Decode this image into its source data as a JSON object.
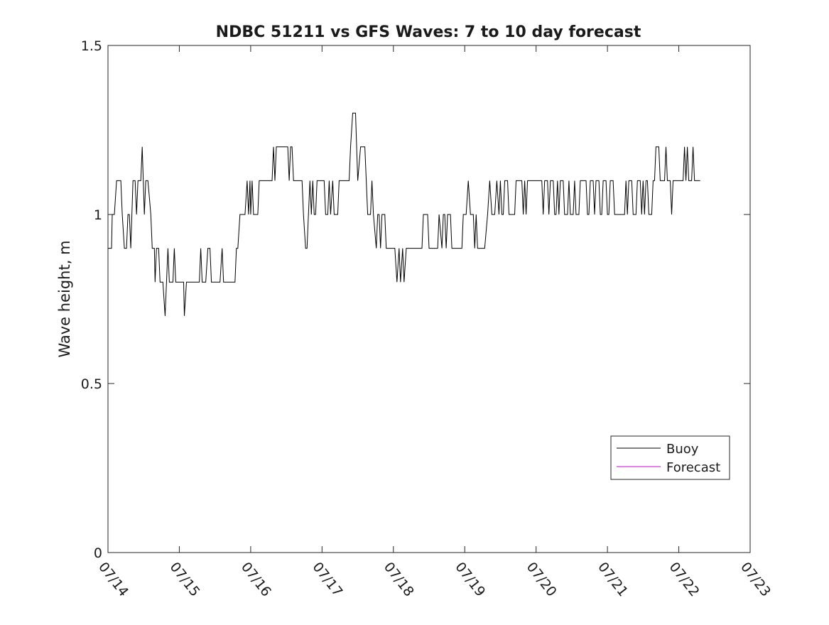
{
  "chart_data": {
    "type": "line",
    "title": "NDBC 51211 vs GFS Waves: 7 to 10 day forecast",
    "xlabel": "",
    "ylabel": "Wave height, m",
    "ylim": [
      0,
      1.5
    ],
    "yticks": [
      "0",
      "0.5",
      "1",
      "1.5"
    ],
    "yticks_values": [
      0,
      0.5,
      1,
      1.5
    ],
    "xlim_days": [
      0,
      9
    ],
    "xticks": [
      "07/14",
      "07/15",
      "07/16",
      "07/17",
      "07/18",
      "07/19",
      "07/20",
      "07/21",
      "07/22",
      "07/23"
    ],
    "grid": false,
    "legend_position": "lower-right",
    "series": [
      {
        "name": "Buoy",
        "color": "#000000",
        "points": [
          [
            0.0,
            0.9
          ],
          [
            0.02,
            0.9
          ],
          [
            0.05,
            0.9
          ],
          [
            0.06,
            1.0
          ],
          [
            0.09,
            1.0
          ],
          [
            0.12,
            1.1
          ],
          [
            0.18,
            1.1
          ],
          [
            0.2,
            1.0
          ],
          [
            0.23,
            0.9
          ],
          [
            0.26,
            0.9
          ],
          [
            0.28,
            1.0
          ],
          [
            0.3,
            1.0
          ],
          [
            0.32,
            0.9
          ],
          [
            0.35,
            1.1
          ],
          [
            0.38,
            1.1
          ],
          [
            0.4,
            1.0
          ],
          [
            0.42,
            1.1
          ],
          [
            0.46,
            1.1
          ],
          [
            0.48,
            1.2
          ],
          [
            0.51,
            1.0
          ],
          [
            0.53,
            1.1
          ],
          [
            0.56,
            1.1
          ],
          [
            0.58,
            1.05
          ],
          [
            0.6,
            1.0
          ],
          [
            0.62,
            0.9
          ],
          [
            0.65,
            0.9
          ],
          [
            0.66,
            0.8
          ],
          [
            0.68,
            0.9
          ],
          [
            0.71,
            0.9
          ],
          [
            0.73,
            0.8
          ],
          [
            0.77,
            0.8
          ],
          [
            0.8,
            0.7
          ],
          [
            0.82,
            0.8
          ],
          [
            0.84,
            0.9
          ],
          [
            0.86,
            0.8
          ],
          [
            0.91,
            0.8
          ],
          [
            0.93,
            0.9
          ],
          [
            0.95,
            0.8
          ],
          [
            1.06,
            0.8
          ],
          [
            1.07,
            0.7
          ],
          [
            1.1,
            0.8
          ],
          [
            1.28,
            0.8
          ],
          [
            1.3,
            0.9
          ],
          [
            1.32,
            0.8
          ],
          [
            1.37,
            0.8
          ],
          [
            1.4,
            0.9
          ],
          [
            1.43,
            0.9
          ],
          [
            1.45,
            0.8
          ],
          [
            1.57,
            0.8
          ],
          [
            1.6,
            0.9
          ],
          [
            1.62,
            0.8
          ],
          [
            1.78,
            0.8
          ],
          [
            1.8,
            0.9
          ],
          [
            1.82,
            0.9
          ],
          [
            1.85,
            1.0
          ],
          [
            1.92,
            1.0
          ],
          [
            1.95,
            1.1
          ],
          [
            1.97,
            1.0
          ],
          [
            1.99,
            1.1
          ],
          [
            2.0,
            1.0
          ],
          [
            2.02,
            1.1
          ],
          [
            2.04,
            1.0
          ],
          [
            2.1,
            1.0
          ],
          [
            2.12,
            1.1
          ],
          [
            2.3,
            1.1
          ],
          [
            2.32,
            1.2
          ],
          [
            2.34,
            1.1
          ],
          [
            2.36,
            1.2
          ],
          [
            2.52,
            1.2
          ],
          [
            2.54,
            1.1
          ],
          [
            2.56,
            1.2
          ],
          [
            2.58,
            1.2
          ],
          [
            2.6,
            1.1
          ],
          [
            2.72,
            1.1
          ],
          [
            2.74,
            1.0
          ],
          [
            2.77,
            0.9
          ],
          [
            2.79,
            0.9
          ],
          [
            2.81,
            1.0
          ],
          [
            2.83,
            1.1
          ],
          [
            2.85,
            1.0
          ],
          [
            2.87,
            1.1
          ],
          [
            2.89,
            1.0
          ],
          [
            2.91,
            1.0
          ],
          [
            2.93,
            1.1
          ],
          [
            3.03,
            1.1
          ],
          [
            3.05,
            1.0
          ],
          [
            3.08,
            1.0
          ],
          [
            3.1,
            1.1
          ],
          [
            3.12,
            1.0
          ],
          [
            3.15,
            1.1
          ],
          [
            3.17,
            1.0
          ],
          [
            3.22,
            1.0
          ],
          [
            3.24,
            1.1
          ],
          [
            3.38,
            1.1
          ],
          [
            3.4,
            1.2
          ],
          [
            3.43,
            1.3
          ],
          [
            3.47,
            1.3
          ],
          [
            3.5,
            1.1
          ],
          [
            3.54,
            1.2
          ],
          [
            3.6,
            1.2
          ],
          [
            3.62,
            1.1
          ],
          [
            3.64,
            1.0
          ],
          [
            3.68,
            1.0
          ],
          [
            3.7,
            1.1
          ],
          [
            3.72,
            1.0
          ],
          [
            3.74,
            0.95
          ],
          [
            3.76,
            0.9
          ],
          [
            3.78,
            1.0
          ],
          [
            3.8,
            1.0
          ],
          [
            3.82,
            0.9
          ],
          [
            3.84,
            1.0
          ],
          [
            3.88,
            1.0
          ],
          [
            3.9,
            0.9
          ],
          [
            4.02,
            0.9
          ],
          [
            4.05,
            0.8
          ],
          [
            4.08,
            0.9
          ],
          [
            4.1,
            0.8
          ],
          [
            4.13,
            0.9
          ],
          [
            4.15,
            0.8
          ],
          [
            4.18,
            0.9
          ],
          [
            4.4,
            0.9
          ],
          [
            4.42,
            1.0
          ],
          [
            4.48,
            1.0
          ],
          [
            4.5,
            0.9
          ],
          [
            4.62,
            0.9
          ],
          [
            4.64,
            1.0
          ],
          [
            4.68,
            0.9
          ],
          [
            4.7,
            1.0
          ],
          [
            4.72,
            1.0
          ],
          [
            4.74,
            0.9
          ],
          [
            4.76,
            1.0
          ],
          [
            4.8,
            1.0
          ],
          [
            4.82,
            0.9
          ],
          [
            4.96,
            0.9
          ],
          [
            4.98,
            1.0
          ],
          [
            5.02,
            1.0
          ],
          [
            5.05,
            1.1
          ],
          [
            5.08,
            1.0
          ],
          [
            5.12,
            1.0
          ],
          [
            5.14,
            0.9
          ],
          [
            5.16,
            1.0
          ],
          [
            5.18,
            0.9
          ],
          [
            5.28,
            0.9
          ],
          [
            5.32,
            1.0
          ],
          [
            5.35,
            1.1
          ],
          [
            5.38,
            1.0
          ],
          [
            5.42,
            1.0
          ],
          [
            5.45,
            1.1
          ],
          [
            5.48,
            1.0
          ],
          [
            5.5,
            1.1
          ],
          [
            5.52,
            1.0
          ],
          [
            5.54,
            1.0
          ],
          [
            5.56,
            1.1
          ],
          [
            5.6,
            1.1
          ],
          [
            5.62,
            1.0
          ],
          [
            5.7,
            1.0
          ],
          [
            5.72,
            1.1
          ],
          [
            5.8,
            1.1
          ],
          [
            5.82,
            1.0
          ],
          [
            5.84,
            1.1
          ],
          [
            5.86,
            1.0
          ],
          [
            5.88,
            1.1
          ],
          [
            6.08,
            1.1
          ],
          [
            6.1,
            1.0
          ],
          [
            6.12,
            1.1
          ],
          [
            6.16,
            1.1
          ],
          [
            6.18,
            1.0
          ],
          [
            6.2,
            1.1
          ],
          [
            6.24,
            1.1
          ],
          [
            6.26,
            1.0
          ],
          [
            6.28,
            1.0
          ],
          [
            6.3,
            1.1
          ],
          [
            6.32,
            1.0
          ],
          [
            6.34,
            1.1
          ],
          [
            6.38,
            1.1
          ],
          [
            6.4,
            1.0
          ],
          [
            6.44,
            1.0
          ],
          [
            6.46,
            1.1
          ],
          [
            6.48,
            1.0
          ],
          [
            6.52,
            1.0
          ],
          [
            6.54,
            1.1
          ],
          [
            6.56,
            1.0
          ],
          [
            6.6,
            1.0
          ],
          [
            6.62,
            1.1
          ],
          [
            6.7,
            1.1
          ],
          [
            6.72,
            1.0
          ],
          [
            6.74,
            1.0
          ],
          [
            6.76,
            1.1
          ],
          [
            6.8,
            1.1
          ],
          [
            6.82,
            1.0
          ],
          [
            6.84,
            1.1
          ],
          [
            6.88,
            1.1
          ],
          [
            6.9,
            1.0
          ],
          [
            6.92,
            1.0
          ],
          [
            6.94,
            1.1
          ],
          [
            6.98,
            1.1
          ],
          [
            7.0,
            1.0
          ],
          [
            7.02,
            1.0
          ],
          [
            7.04,
            1.1
          ],
          [
            7.08,
            1.1
          ],
          [
            7.1,
            1.0
          ],
          [
            7.24,
            1.0
          ],
          [
            7.26,
            1.1
          ],
          [
            7.28,
            1.0
          ],
          [
            7.3,
            1.1
          ],
          [
            7.34,
            1.1
          ],
          [
            7.36,
            1.0
          ],
          [
            7.4,
            1.0
          ],
          [
            7.42,
            1.1
          ],
          [
            7.46,
            1.1
          ],
          [
            7.48,
            1.0
          ],
          [
            7.5,
            1.1
          ],
          [
            7.52,
            1.0
          ],
          [
            7.54,
            1.1
          ],
          [
            7.56,
            1.1
          ],
          [
            7.58,
            1.0
          ],
          [
            7.62,
            1.0
          ],
          [
            7.64,
            1.1
          ],
          [
            7.66,
            1.1
          ],
          [
            7.68,
            1.2
          ],
          [
            7.72,
            1.2
          ],
          [
            7.74,
            1.1
          ],
          [
            7.8,
            1.1
          ],
          [
            7.82,
            1.2
          ],
          [
            7.84,
            1.1
          ],
          [
            7.88,
            1.1
          ],
          [
            7.9,
            1.0
          ],
          [
            7.92,
            1.1
          ],
          [
            8.06,
            1.1
          ],
          [
            8.08,
            1.2
          ],
          [
            8.1,
            1.1
          ],
          [
            8.12,
            1.2
          ],
          [
            8.14,
            1.1
          ],
          [
            8.18,
            1.1
          ],
          [
            8.2,
            1.2
          ],
          [
            8.22,
            1.1
          ],
          [
            8.3,
            1.1
          ]
        ]
      },
      {
        "name": "Forecast",
        "color": "#cc00cc",
        "points": []
      }
    ]
  }
}
